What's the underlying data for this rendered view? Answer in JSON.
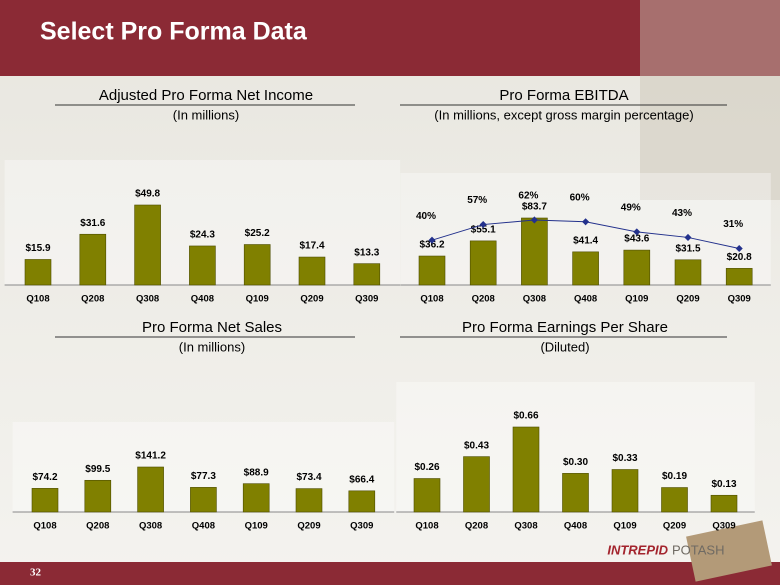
{
  "title": "Select Pro Forma Data",
  "page_number": "32",
  "logo": [
    "INTREPID",
    "POTASH"
  ],
  "chart_data": [
    {
      "type": "bar",
      "title": "Adjusted Pro Forma Net Income",
      "subtitle": "(In millions)",
      "categories": [
        "Q108",
        "Q208",
        "Q308",
        "Q408",
        "Q109",
        "Q209",
        "Q309"
      ],
      "series": [
        {
          "type": "bar",
          "color": "#808000",
          "values": [
            15.9,
            31.6,
            49.8,
            24.3,
            25.2,
            17.4,
            13.3
          ],
          "value_labels": [
            "$15.9",
            "$31.6",
            "$49.8",
            "$24.3",
            "$25.2",
            "$17.4",
            "$13.3"
          ]
        }
      ]
    },
    {
      "type": "bar",
      "title": "Pro Forma EBITDA",
      "subtitle": "(In millions, except gross margin percentage)",
      "categories": [
        "Q108",
        "Q208",
        "Q308",
        "Q408",
        "Q109",
        "Q209",
        "Q309"
      ],
      "series": [
        {
          "type": "bar",
          "color": "#808000",
          "values": [
            36.2,
            55.1,
            83.7,
            41.4,
            43.6,
            31.5,
            20.8
          ],
          "value_labels": [
            "$36.2",
            "$55.1",
            "$83.7",
            "$41.4",
            "$43.6",
            "$31.5",
            "$20.8"
          ]
        },
        {
          "type": "line",
          "axis": "y2",
          "color": "#23318c",
          "values": [
            40,
            57,
            62,
            60,
            49,
            43,
            31
          ],
          "value_labels": [
            "40%",
            "57%",
            "62%",
            "60%",
            "49%",
            "43%",
            "31%"
          ]
        }
      ]
    },
    {
      "type": "bar",
      "title": "Pro Forma Net Sales",
      "subtitle": "(In millions)",
      "categories": [
        "Q108",
        "Q208",
        "Q308",
        "Q408",
        "Q109",
        "Q209",
        "Q309"
      ],
      "series": [
        {
          "type": "bar",
          "color": "#808000",
          "values": [
            74.2,
            99.5,
            141.2,
            77.3,
            88.9,
            73.4,
            66.4
          ],
          "value_labels": [
            "$74.2",
            "$99.5",
            "$141.2",
            "$77.3",
            "$88.9",
            "$73.4",
            "$66.4"
          ]
        }
      ]
    },
    {
      "type": "bar",
      "title": "Pro Forma Earnings Per Share",
      "subtitle": "(Diluted)",
      "categories": [
        "Q108",
        "Q208",
        "Q308",
        "Q408",
        "Q109",
        "Q209",
        "Q309"
      ],
      "series": [
        {
          "type": "bar",
          "color": "#808000",
          "values": [
            0.26,
            0.43,
            0.66,
            0.3,
            0.33,
            0.19,
            0.13
          ],
          "value_labels": [
            "$0.26",
            "$0.43",
            "$0.66",
            "$0.30",
            "$0.33",
            "$0.19",
            "$0.13"
          ]
        }
      ]
    }
  ]
}
